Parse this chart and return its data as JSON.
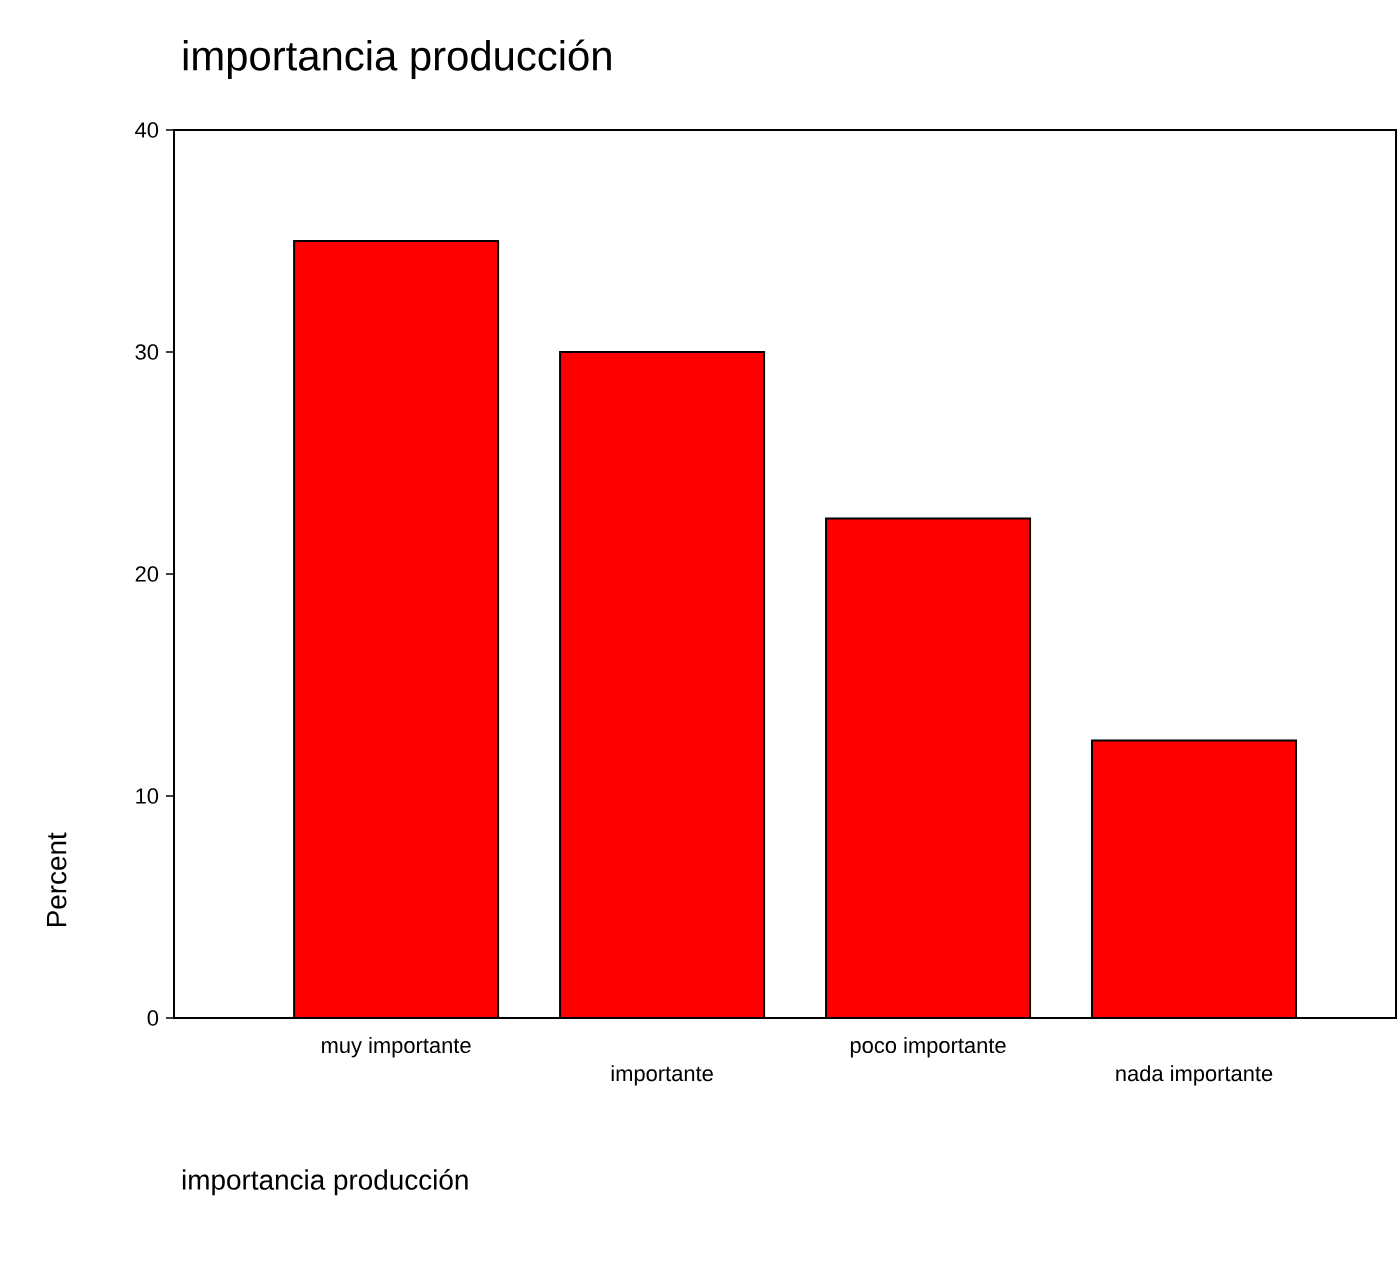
{
  "chart_data": {
    "type": "bar",
    "title": "importancia producción",
    "xlabel": "importancia producción",
    "ylabel": "Percent",
    "categories": [
      "muy importante",
      "importante",
      "poco importante",
      "nada importante"
    ],
    "values": [
      35,
      30,
      22.5,
      12.5
    ],
    "color": "#ff0000",
    "ylim": [
      0,
      40
    ],
    "yticks": [
      0,
      10,
      20,
      30,
      40
    ],
    "grid": false
  }
}
